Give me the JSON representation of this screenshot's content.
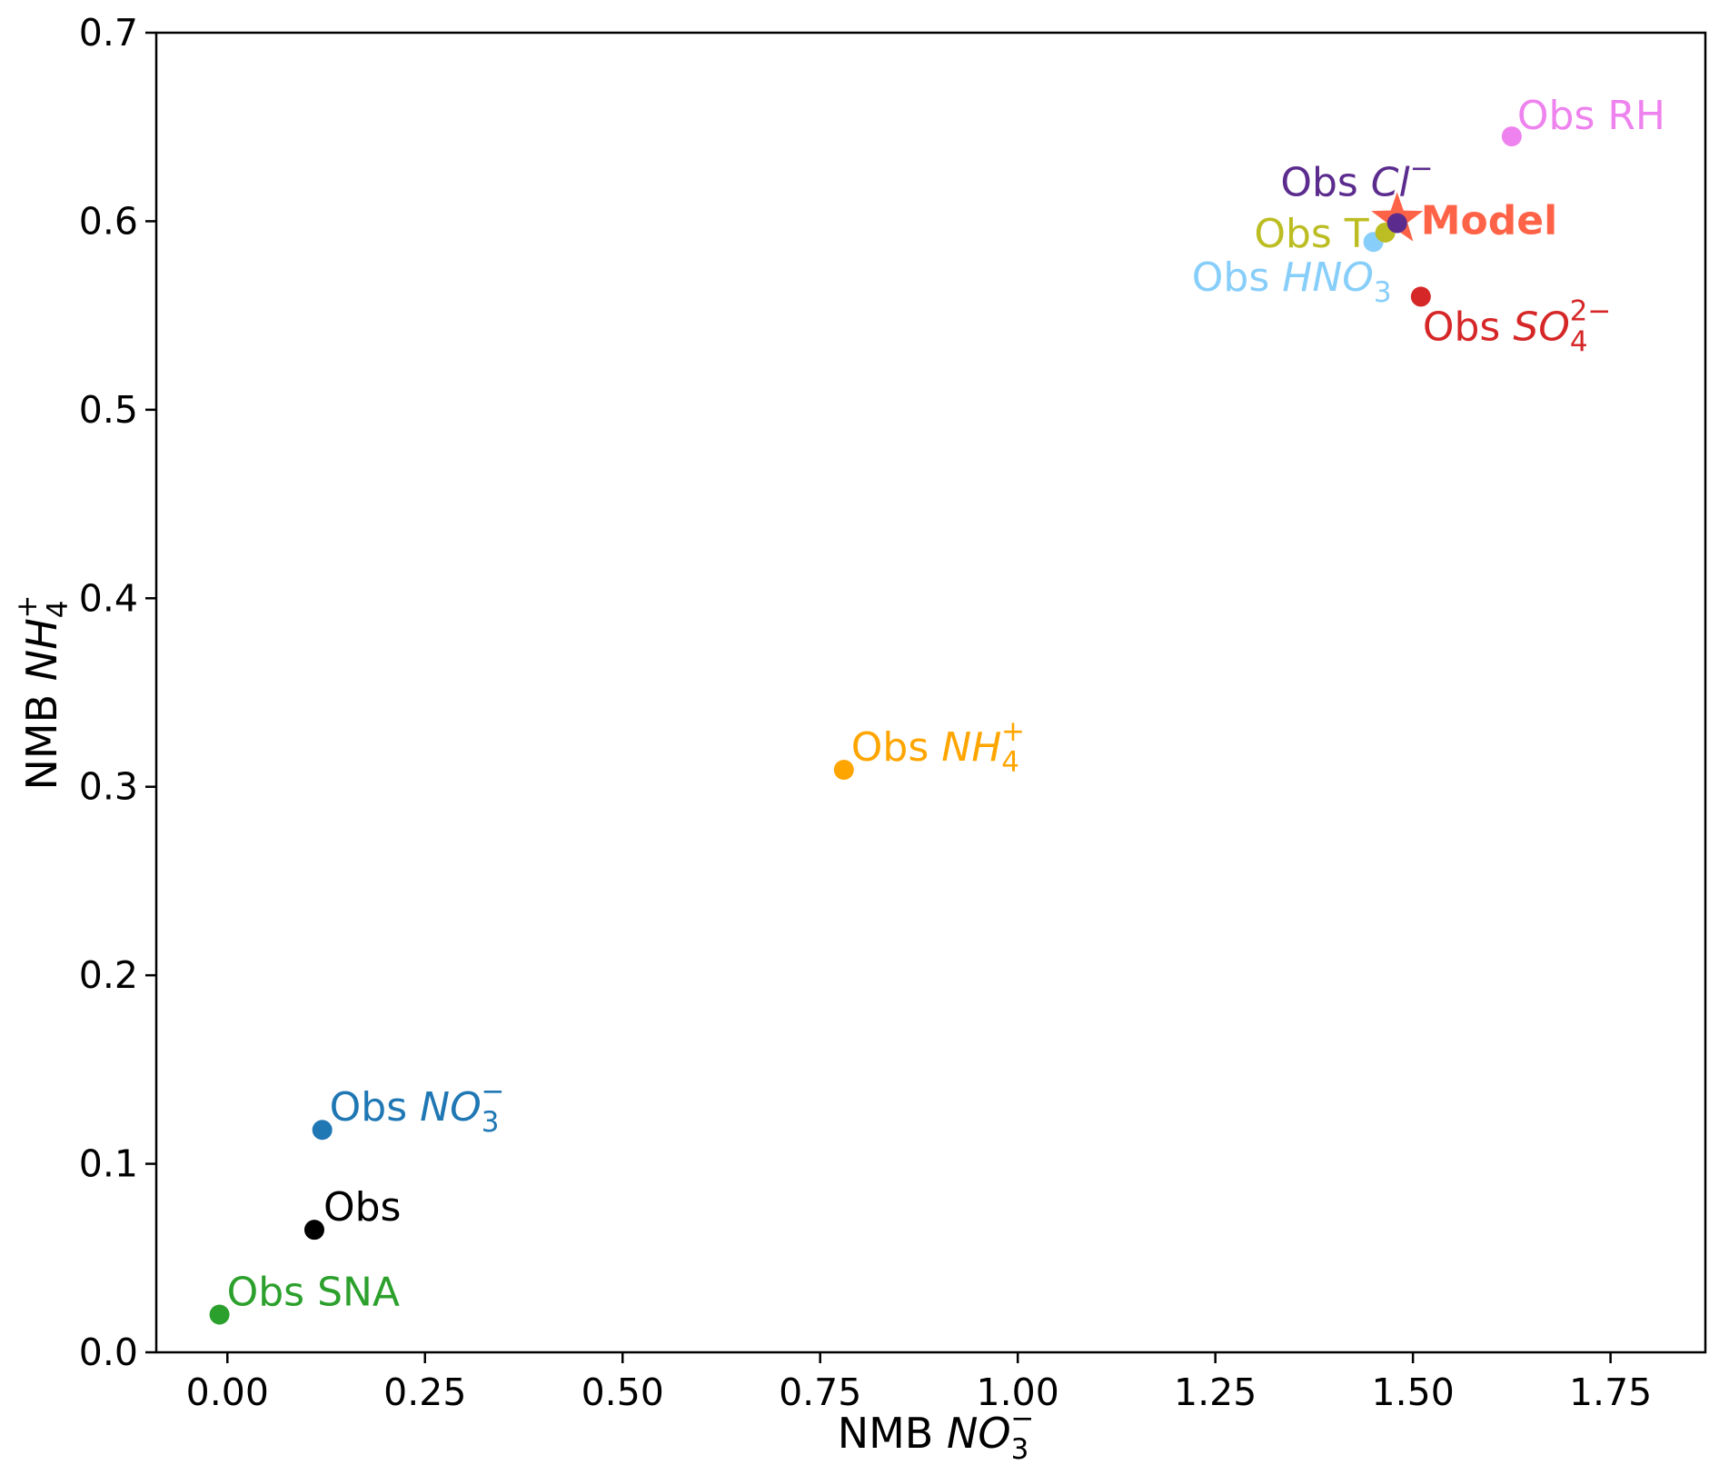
{
  "chart_data": {
    "type": "scatter",
    "xlabel": {
      "prefix": "NMB ",
      "chem": "NO",
      "sub": "3",
      "sup": "−"
    },
    "ylabel": {
      "prefix": "NMB ",
      "chem": "NH",
      "sub": "4",
      "sup": "+"
    },
    "xlim": [
      -0.09,
      1.87
    ],
    "ylim": [
      0.0,
      0.7
    ],
    "xticks": [
      "0.00",
      "0.25",
      "0.50",
      "0.75",
      "1.00",
      "1.25",
      "1.50",
      "1.75"
    ],
    "yticks": [
      "0.0",
      "0.1",
      "0.2",
      "0.3",
      "0.4",
      "0.5",
      "0.6",
      "0.7"
    ],
    "grid": false,
    "points": [
      {
        "name": "obs-sna",
        "x": -0.01,
        "y": 0.02,
        "color": "#2ca02c",
        "marker": "circle",
        "label": {
          "prefix": "Obs ",
          "text": "SNA"
        }
      },
      {
        "name": "obs",
        "x": 0.11,
        "y": 0.065,
        "color": "#000000",
        "marker": "circle",
        "label": {
          "prefix": "Obs"
        }
      },
      {
        "name": "obs-no3",
        "x": 0.12,
        "y": 0.118,
        "color": "#1f77b4",
        "marker": "circle",
        "label": {
          "prefix": "Obs ",
          "chem": "NO",
          "sub": "3",
          "sup": "−"
        }
      },
      {
        "name": "obs-nh4",
        "x": 0.78,
        "y": 0.309,
        "color": "#ffa500",
        "marker": "circle",
        "label": {
          "prefix": "Obs ",
          "chem": "NH",
          "sub": "4",
          "sup": "+"
        }
      },
      {
        "name": "obs-hno3",
        "x": 1.45,
        "y": 0.589,
        "color": "#87cefa",
        "marker": "circle",
        "label": {
          "prefix": "Obs ",
          "chem": "HNO",
          "sub": "3"
        }
      },
      {
        "name": "obs-t",
        "x": 1.465,
        "y": 0.594,
        "color": "#bcbd22",
        "marker": "circle",
        "label": {
          "prefix": "Obs T"
        }
      },
      {
        "name": "model",
        "x": 1.48,
        "y": 0.601,
        "color": "#ff6347",
        "marker": "star",
        "label": {
          "prefix": "Model"
        }
      },
      {
        "name": "obs-cl",
        "x": 1.48,
        "y": 0.599,
        "color": "#5b2c8e",
        "marker": "circle",
        "label": {
          "prefix": "Obs ",
          "chem": "Cl",
          "sup": "−"
        }
      },
      {
        "name": "obs-so4",
        "x": 1.51,
        "y": 0.56,
        "color": "#d62728",
        "marker": "circle",
        "label": {
          "prefix": "Obs ",
          "chem": "SO",
          "sub": "4",
          "sup": "2−"
        }
      },
      {
        "name": "obs-rh",
        "x": 1.625,
        "y": 0.645,
        "color": "#ee82ee",
        "marker": "circle",
        "label": {
          "prefix": "Obs ",
          "text": "RH"
        }
      }
    ]
  }
}
